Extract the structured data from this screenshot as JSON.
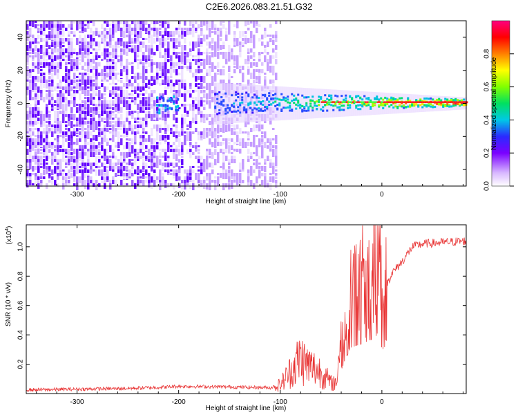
{
  "title": "C2E6.2026.083.21.51.G32",
  "chart_data": [
    {
      "type": "heatmap",
      "xlabel": "Height of straight line (km)",
      "ylabel": "Frequency (Hz)",
      "xlim": [
        -350,
        83
      ],
      "ylim": [
        -50,
        50
      ],
      "x_ticks": [
        -300,
        -200,
        -100,
        0
      ],
      "y_ticks": [
        -40,
        -20,
        0,
        20,
        40
      ],
      "x_tick_labels": [
        "-300",
        "-200",
        "-100",
        "0"
      ],
      "y_tick_labels": [
        "-40",
        "-20",
        "0",
        "20",
        "40"
      ],
      "description_colors": {
        "low": "#f0e6ff",
        "mid": "#6a00ff",
        "high": "#ff0000"
      },
      "colorbar": {
        "label": "Normalized spectral amplitude",
        "range": [
          0,
          1
        ],
        "ticks": [
          0.0,
          0.2,
          0.4,
          0.6,
          0.8
        ],
        "tick_labels": [
          "0.0",
          "0.2",
          "0.4",
          "0.6",
          "0.8"
        ]
      },
      "noise_region_x": [
        -350,
        -103
      ],
      "signal_band": {
        "x_start": -165,
        "x_end": 83,
        "center_hz": 0,
        "halfwidth_hz_start": 7,
        "halfwidth_hz_end": 2
      }
    },
    {
      "type": "line",
      "xlabel": "Height of straight line (km)",
      "ylabel": "SNR (10 * v/v)",
      "y_multiplier": "(x10",
      "y_multiplier_exp": "4",
      "y_multiplier_close": ")",
      "xlim": [
        -350,
        83
      ],
      "ylim": [
        0,
        11500
      ],
      "x_ticks": [
        -300,
        -200,
        -100,
        0
      ],
      "y_ticks": [
        2000,
        4000,
        6000,
        8000,
        10000
      ],
      "x_tick_labels": [
        "-300",
        "-200",
        "-100",
        "0"
      ],
      "y_tick_labels": [
        "0.2",
        "0.4",
        "0.6",
        "0.8",
        "1.0"
      ],
      "line_color": "#e83232",
      "series": [
        {
          "name": "SNR",
          "x": [
            -350,
            -300,
            -250,
            -210,
            -200,
            -150,
            -110,
            -100,
            -90,
            -80,
            -75,
            -60,
            -50,
            -45,
            -40,
            -35,
            -30,
            -20,
            -10,
            -5,
            -2,
            0,
            5,
            10,
            20,
            30,
            40,
            60,
            83
          ],
          "values": [
            250,
            300,
            350,
            450,
            500,
            450,
            400,
            600,
            1500,
            2500,
            2000,
            1500,
            700,
            800,
            3500,
            5500,
            7000,
            7500,
            8200,
            8800,
            10800,
            6500,
            7500,
            8200,
            9000,
            10000,
            10200,
            10300,
            10400
          ]
        }
      ]
    }
  ]
}
